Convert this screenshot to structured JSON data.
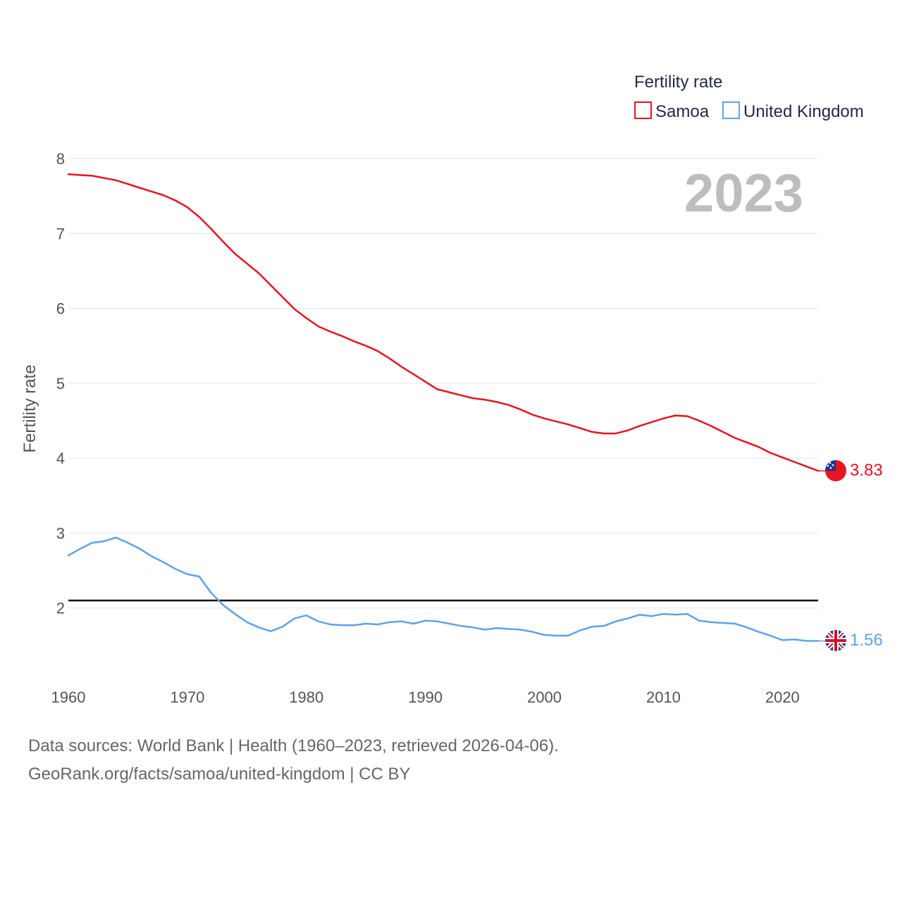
{
  "chart_data": {
    "type": "line",
    "legend_title": "Fertility rate",
    "ylabel": "Fertility rate",
    "year_label": "2023",
    "ylim": [
      1,
      8
    ],
    "yticks": [
      "2",
      "3",
      "4",
      "5",
      "6",
      "7",
      "8"
    ],
    "xticks": [
      "1960",
      "1970",
      "1980",
      "1990",
      "2000",
      "2010",
      "2020"
    ],
    "xlim": [
      1960,
      2023
    ],
    "reference_line": 2.1,
    "x": [
      1960,
      1961,
      1962,
      1963,
      1964,
      1965,
      1966,
      1967,
      1968,
      1969,
      1970,
      1971,
      1972,
      1973,
      1974,
      1975,
      1976,
      1977,
      1978,
      1979,
      1980,
      1981,
      1982,
      1983,
      1984,
      1985,
      1986,
      1987,
      1988,
      1989,
      1990,
      1991,
      1992,
      1993,
      1994,
      1995,
      1996,
      1997,
      1998,
      1999,
      2000,
      2001,
      2002,
      2003,
      2004,
      2005,
      2006,
      2007,
      2008,
      2009,
      2010,
      2011,
      2012,
      2013,
      2014,
      2015,
      2016,
      2017,
      2018,
      2019,
      2020,
      2021,
      2022,
      2023
    ],
    "series": [
      {
        "name": "Samoa",
        "color": "#e8141f",
        "end_label": "3.83",
        "values": [
          7.79,
          7.78,
          7.77,
          7.74,
          7.71,
          7.66,
          7.61,
          7.56,
          7.51,
          7.44,
          7.35,
          7.22,
          7.06,
          6.89,
          6.73,
          6.6,
          6.47,
          6.31,
          6.15,
          5.99,
          5.87,
          5.76,
          5.69,
          5.63,
          5.56,
          5.5,
          5.43,
          5.33,
          5.22,
          5.12,
          5.02,
          4.92,
          4.88,
          4.84,
          4.8,
          4.78,
          4.75,
          4.71,
          4.65,
          4.58,
          4.53,
          4.49,
          4.45,
          4.4,
          4.35,
          4.33,
          4.33,
          4.37,
          4.43,
          4.48,
          4.53,
          4.57,
          4.56,
          4.5,
          4.43,
          4.35,
          4.27,
          4.21,
          4.15,
          4.07,
          4.01,
          3.95,
          3.89,
          3.83
        ]
      },
      {
        "name": "United Kingdom",
        "color": "#5ea3e6",
        "end_label": "1.56",
        "values": [
          2.7,
          2.79,
          2.87,
          2.89,
          2.94,
          2.87,
          2.79,
          2.69,
          2.61,
          2.52,
          2.45,
          2.42,
          2.2,
          2.04,
          1.92,
          1.81,
          1.74,
          1.69,
          1.75,
          1.86,
          1.9,
          1.82,
          1.78,
          1.77,
          1.77,
          1.79,
          1.78,
          1.81,
          1.82,
          1.79,
          1.83,
          1.82,
          1.79,
          1.76,
          1.74,
          1.71,
          1.73,
          1.72,
          1.71,
          1.68,
          1.64,
          1.63,
          1.63,
          1.7,
          1.75,
          1.76,
          1.82,
          1.86,
          1.91,
          1.89,
          1.92,
          1.91,
          1.92,
          1.83,
          1.81,
          1.8,
          1.79,
          1.74,
          1.68,
          1.63,
          1.57,
          1.58,
          1.56,
          1.56
        ]
      }
    ]
  },
  "footer": {
    "line1": "Data sources: World Bank | Health (1960–2023, retrieved 2026-04-06).",
    "line2": "GeoRank.org/facts/samoa/united-kingdom | CC BY"
  }
}
